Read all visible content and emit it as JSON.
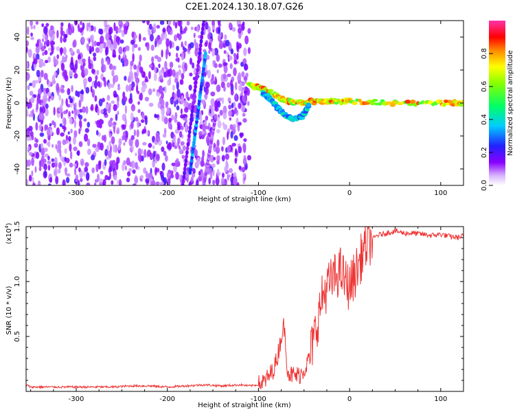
{
  "title": "C2E1.2024.130.18.07.G26",
  "colors": {
    "snr_line": "#ee3333",
    "axis": "#000000",
    "background": "#ffffff"
  },
  "chart_data": [
    {
      "type": "heatmap",
      "xlabel": "Height of straight line (km)",
      "ylabel": "Frequency (Hz)",
      "xlim": [
        -355,
        125
      ],
      "ylim": [
        -50,
        50
      ],
      "x_ticks": [
        -300,
        -200,
        -100,
        0,
        100
      ],
      "y_ticks": [
        -40,
        -20,
        0,
        20,
        40
      ],
      "colorbar": {
        "label": "Normalized spectral amplitude",
        "range": [
          0.0,
          1.0
        ],
        "ticks": [
          "0.0",
          "0.2",
          "0.4",
          "0.6",
          "0.8"
        ],
        "colormap": "rainbow (white-violet-blue-cyan-green-yellow-red-magenta)"
      },
      "features": [
        {
          "name": "noise",
          "x_range": [
            -355,
            -110
          ],
          "freq_range": [
            -50,
            50
          ],
          "amplitude": 0.05
        },
        {
          "name": "streak",
          "points": [
            [
              -183,
              -50
            ],
            [
              -160,
              50
            ]
          ],
          "amplitude": 0.15
        },
        {
          "name": "streak",
          "points": [
            [
              -175,
              -42
            ],
            [
              -158,
              30
            ]
          ],
          "amplitude": 0.3
        },
        {
          "name": "streak",
          "points": [
            [
              -160,
              -50
            ],
            [
              -147,
              -8
            ]
          ],
          "amplitude": 0.1
        },
        {
          "name": "main trace",
          "points": [
            [
              -110,
              11
            ],
            [
              -95,
              9
            ],
            [
              -80,
              4
            ],
            [
              -70,
              1
            ],
            [
              -55,
              0
            ],
            [
              -40,
              1
            ],
            [
              -20,
              1
            ],
            [
              0,
              1
            ],
            [
              50,
              0
            ],
            [
              100,
              0
            ],
            [
              125,
              0
            ]
          ],
          "amplitude": 0.7
        },
        {
          "name": "lower branch",
          "points": [
            [
              -95,
              6
            ],
            [
              -85,
              1
            ],
            [
              -75,
              -5
            ],
            [
              -62,
              -10
            ],
            [
              -52,
              -8
            ],
            [
              -45,
              -2
            ]
          ],
          "amplitude": 0.35
        }
      ]
    },
    {
      "type": "line",
      "xlabel": "Height of straight line (km)",
      "ylabel": "SNR (10 * v/v)",
      "yscale_label": "(x10",
      "yscale_exp": "4",
      "yscale_close": ")",
      "xlim": [
        -355,
        125
      ],
      "ylim": [
        0,
        1.5
      ],
      "x_ticks": [
        -300,
        -200,
        -100,
        0,
        100
      ],
      "y_ticks": [
        0.5,
        1.0,
        1.5
      ],
      "y_tick_labels": [
        "0.5",
        "1.0",
        "1.5"
      ],
      "series": [
        {
          "x": [
            -355,
            -350,
            -340,
            -320,
            -300,
            -280,
            -260,
            -240,
            -220,
            -200,
            -180,
            -160,
            -140,
            -120,
            -110,
            -100,
            -95,
            -90,
            -85,
            -80,
            -75,
            -72,
            -70,
            -68,
            -65,
            -62,
            -60,
            -55,
            -50,
            -45,
            -40,
            -35,
            -30,
            -25,
            -20,
            -15,
            -10,
            -5,
            0,
            5,
            10,
            15,
            20,
            25,
            30,
            40,
            50,
            60,
            70,
            80,
            90,
            100,
            110,
            120,
            125
          ],
          "y": [
            0.06,
            0.04,
            0.04,
            0.04,
            0.04,
            0.04,
            0.04,
            0.05,
            0.05,
            0.04,
            0.05,
            0.06,
            0.05,
            0.06,
            0.05,
            0.06,
            0.08,
            0.12,
            0.18,
            0.28,
            0.5,
            0.6,
            0.4,
            0.2,
            0.15,
            0.15,
            0.14,
            0.15,
            0.2,
            0.28,
            0.45,
            0.65,
            0.85,
            0.95,
            1.0,
            1.05,
            1.1,
            1.0,
            0.95,
            1.05,
            1.15,
            1.28,
            1.35,
            1.38,
            1.42,
            1.44,
            1.46,
            1.44,
            1.44,
            1.43,
            1.42,
            1.43,
            1.41,
            1.4,
            1.42
          ]
        }
      ]
    }
  ]
}
